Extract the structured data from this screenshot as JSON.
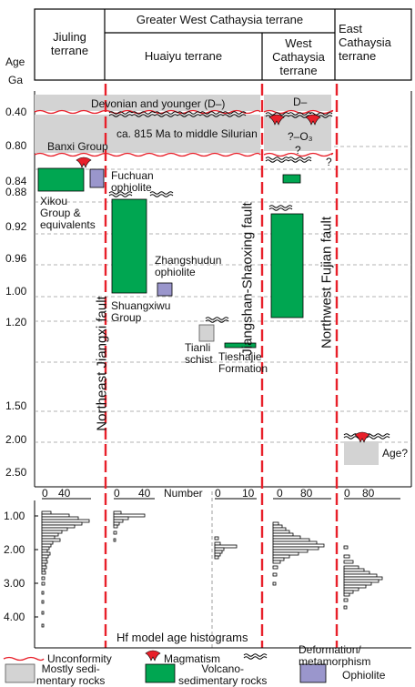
{
  "header": {
    "greater_west": "Greater West Cathaysia terrane",
    "jiuling": [
      "Jiuling",
      "terrane"
    ],
    "huaiyu": "Huaiyu terrane",
    "west_cathaysia": [
      "West",
      "Cathaysia",
      "terrane"
    ],
    "east_cathaysia": [
      "East",
      "Cathaysia",
      "terrane"
    ],
    "age": [
      "Age",
      "Ga"
    ]
  },
  "age_ticks": [
    "0.40",
    "0.80",
    "0.84",
    "0.88",
    "0.92",
    "0.96",
    "1.00",
    "1.20",
    "1.50",
    "2.00",
    "2.50"
  ],
  "labels": {
    "devonian": "Devonian and younger (D–)",
    "ca815": "ca. 815 Ma to middle Silurian",
    "banxi": "Banxi Group",
    "d_west": "D–",
    "o3_west": "?–O₃",
    "q1": "?",
    "q2": "?",
    "fuchuan": [
      "Fuchuan",
      "ophiolite"
    ],
    "xikou": [
      "Xikou",
      "Group &",
      "equivalents"
    ],
    "zhangshudun": [
      "Zhangshudun",
      "ophiolite"
    ],
    "shuangxiwu": [
      "Shuangxiwu",
      "Group"
    ],
    "tianli": [
      "Tianli",
      "schist"
    ],
    "tieshajie": [
      "Tieshajie",
      "Formation"
    ],
    "age_q": "Age?"
  },
  "faults": {
    "ne_jiangxi": "Northeast Jiangxi fault",
    "jiangshan": "Jiangshan-Shaoxing fault",
    "nw_fujian": "Northwest Fujian fault"
  },
  "histogram": {
    "number_label": "Number",
    "title": "Hf model age histograms",
    "y_ticks": [
      "1.00",
      "2.00",
      "3.00",
      "4.00"
    ],
    "panels": [
      {
        "x_ticks": [
          "0",
          "40"
        ]
      },
      {
        "x_ticks": [
          "0",
          "40"
        ]
      },
      {
        "x_ticks": [
          "0",
          "10"
        ]
      },
      {
        "x_ticks": [
          "0",
          "80"
        ]
      },
      {
        "x_ticks": [
          "0",
          "80"
        ]
      }
    ]
  },
  "legend": {
    "unconformity": "Unconformity",
    "magmatism": "Magmatism",
    "deformation": [
      "Deformation/",
      "metamorphism"
    ],
    "mostly_sed": [
      "Mostly sedi-",
      "mentary rocks"
    ],
    "volcano": [
      "Volcano-",
      "sedimentary rocks"
    ],
    "ophiolite": "Ophiolite"
  },
  "colors": {
    "gray": "#d3d3d3",
    "green": "#00a651",
    "purple": "#9a96cc",
    "red": "#e8202a"
  }
}
